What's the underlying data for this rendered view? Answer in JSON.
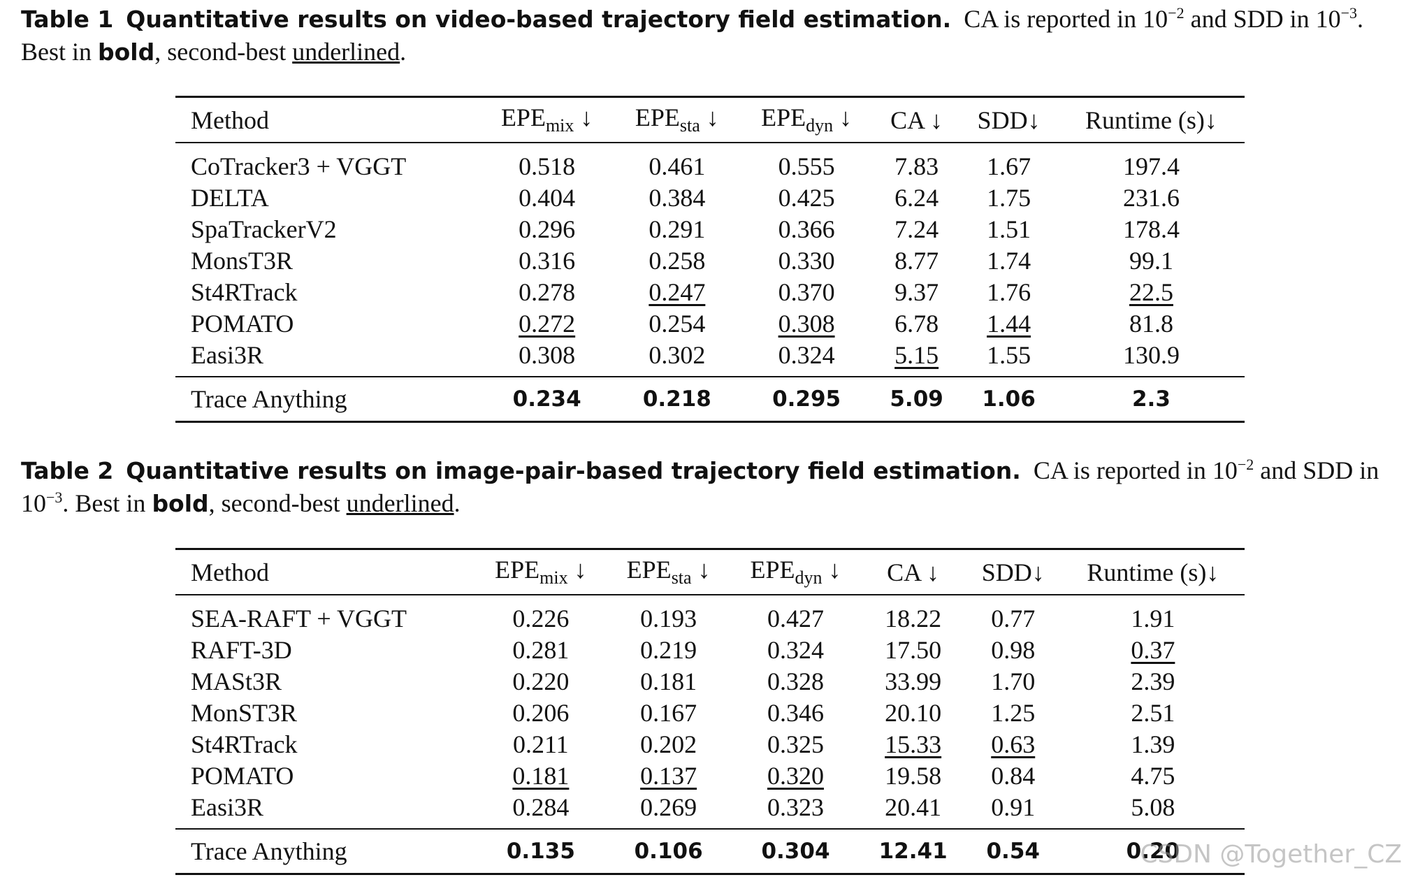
{
  "table1": {
    "caption_label": "Table 1",
    "caption_title": "Quantitative results on video-based trajectory field estimation.",
    "caption_text_a": "CA is reported in 10",
    "caption_exp_a": "−2",
    "caption_text_b": "and SDD in 10",
    "caption_exp_b": "−3",
    "caption_text_c": ". Best in",
    "caption_bold_word": "bold",
    "caption_text_d": ", second-best",
    "caption_underline_word": "underlined",
    "caption_text_e": ".",
    "headers": {
      "method": "Method",
      "epe": "EPE",
      "mix": "mix",
      "sta": "sta",
      "dyn": "dyn",
      "down_arrow": " ↓",
      "ca": "CA ↓",
      "sdd": "SDD↓",
      "runtime": "Runtime (s)↓"
    },
    "rows": [
      {
        "method": "CoTracker3 + VGGT",
        "mix": "0.518",
        "sta": "0.461",
        "dyn": "0.555",
        "ca": "7.83",
        "sdd": "1.67",
        "runtime": "197.4"
      },
      {
        "method": "DELTA",
        "mix": "0.404",
        "sta": "0.384",
        "dyn": "0.425",
        "ca": "6.24",
        "sdd": "1.75",
        "runtime": "231.6"
      },
      {
        "method": "SpaTrackerV2",
        "mix": "0.296",
        "sta": "0.291",
        "dyn": "0.366",
        "ca": "7.24",
        "sdd": "1.51",
        "runtime": "178.4"
      },
      {
        "method": "MonsT3R",
        "mix": "0.316",
        "sta": "0.258",
        "dyn": "0.330",
        "ca": "8.77",
        "sdd": "1.74",
        "runtime": "99.1"
      },
      {
        "method": "St4RTrack",
        "mix": "0.278",
        "sta": "0.247",
        "dyn": "0.370",
        "ca": "9.37",
        "sdd": "1.76",
        "runtime": "22.5"
      },
      {
        "method": "POMATO",
        "mix": "0.272",
        "sta": "0.254",
        "dyn": "0.308",
        "ca": "6.78",
        "sdd": "1.44",
        "runtime": "81.8"
      },
      {
        "method": "Easi3R",
        "mix": "0.308",
        "sta": "0.302",
        "dyn": "0.324",
        "ca": "5.15",
        "sdd": "1.55",
        "runtime": "130.9"
      }
    ],
    "final": {
      "method": "Trace Anything",
      "mix": "0.234",
      "sta": "0.218",
      "dyn": "0.295",
      "ca": "5.09",
      "sdd": "1.06",
      "runtime": "2.3"
    }
  },
  "table2": {
    "caption_label": "Table 2",
    "caption_title": "Quantitative results on image-pair-based trajectory field estimation.",
    "caption_text_a": "CA is reported in 10",
    "caption_exp_a": "−2",
    "caption_text_b": "and SDD in 10",
    "caption_exp_b": "−3",
    "caption_text_c": ". Best in",
    "caption_bold_word": "bold",
    "caption_text_d": ", second-best",
    "caption_underline_word": "underlined",
    "caption_text_e": ".",
    "headers": {
      "method": "Method",
      "epe": "EPE",
      "mix": "mix",
      "sta": "sta",
      "dyn": "dyn",
      "down_arrow": " ↓",
      "ca": "CA ↓",
      "sdd": "SDD↓",
      "runtime": "Runtime (s)↓"
    },
    "rows": [
      {
        "method": "SEA-RAFT + VGGT",
        "mix": "0.226",
        "sta": "0.193",
        "dyn": "0.427",
        "ca": "18.22",
        "sdd": "0.77",
        "runtime": "1.91"
      },
      {
        "method": "RAFT-3D",
        "mix": "0.281",
        "sta": "0.219",
        "dyn": "0.324",
        "ca": "17.50",
        "sdd": "0.98",
        "runtime": "0.37"
      },
      {
        "method": "MASt3R",
        "mix": "0.220",
        "sta": "0.181",
        "dyn": "0.328",
        "ca": "33.99",
        "sdd": "1.70",
        "runtime": "2.39"
      },
      {
        "method": "MonST3R",
        "mix": "0.206",
        "sta": "0.167",
        "dyn": "0.346",
        "ca": "20.10",
        "sdd": "1.25",
        "runtime": "2.51"
      },
      {
        "method": "St4RTrack",
        "mix": "0.211",
        "sta": "0.202",
        "dyn": "0.325",
        "ca": "15.33",
        "sdd": "0.63",
        "runtime": "1.39"
      },
      {
        "method": "POMATO",
        "mix": "0.181",
        "sta": "0.137",
        "dyn": "0.320",
        "ca": "19.58",
        "sdd": "0.84",
        "runtime": "4.75"
      },
      {
        "method": "Easi3R",
        "mix": "0.284",
        "sta": "0.269",
        "dyn": "0.323",
        "ca": "20.41",
        "sdd": "0.91",
        "runtime": "5.08"
      }
    ],
    "final": {
      "method": "Trace Anything",
      "mix": "0.135",
      "sta": "0.106",
      "dyn": "0.304",
      "ca": "12.41",
      "sdd": "0.54",
      "runtime": "0.20"
    }
  },
  "watermark": "CSDN @Together_CZ"
}
